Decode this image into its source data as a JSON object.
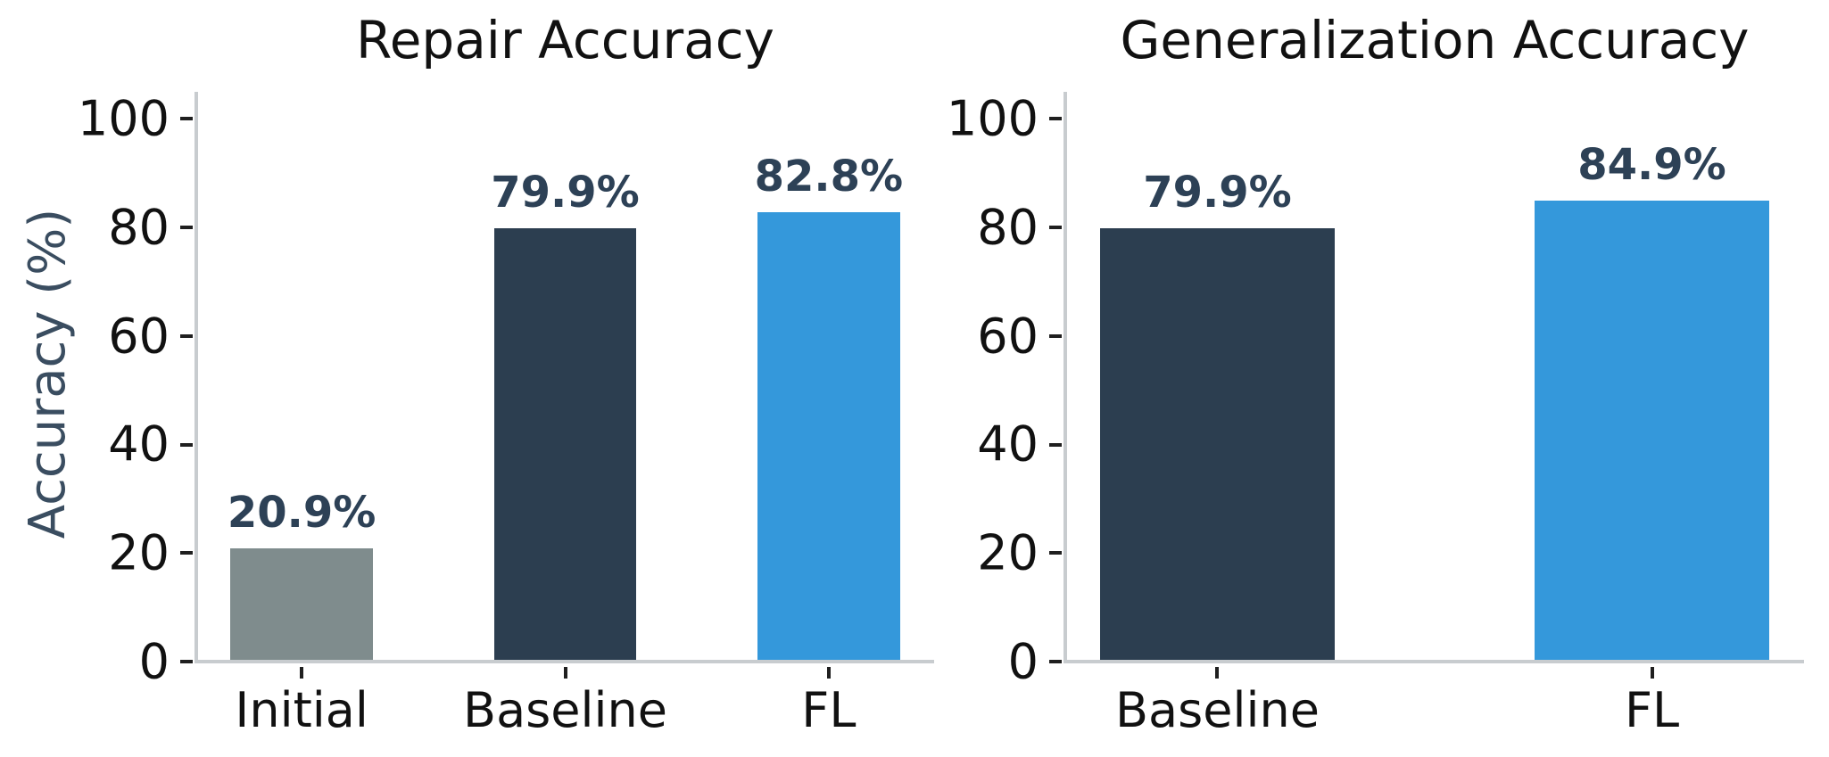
{
  "figure": {
    "background": "#ffffff",
    "ylabel": "Accuracy (%)",
    "colors": {
      "initial_bar": "#7f8c8d",
      "baseline_bar": "#2c3e50",
      "fl_bar": "#3498db",
      "value_label": "#2d4156",
      "axis_label": "#3a4d60",
      "tick_text": "#111111",
      "tick_mark": "#1f1f1f",
      "spine": "#c8cccf",
      "title": "#111111"
    }
  },
  "chart_data": [
    {
      "type": "bar",
      "title": "Repair Accuracy",
      "categories": [
        "Initial",
        "Baseline",
        "FL"
      ],
      "values": [
        20.9,
        79.9,
        82.8
      ],
      "value_labels": [
        "20.9%",
        "79.9%",
        "82.8%"
      ],
      "bar_colors": [
        "#7f8c8d",
        "#2c3e50",
        "#3498db"
      ],
      "ylabel": "Accuracy (%)",
      "ylim": [
        0,
        105
      ],
      "yticks": [
        0,
        20,
        40,
        60,
        80,
        100
      ],
      "xlim": [
        -0.4,
        2.4
      ],
      "bar_width": 0.54,
      "grid": false,
      "legend": null
    },
    {
      "type": "bar",
      "title": "Generalization Accuracy",
      "categories": [
        "Baseline",
        "FL"
      ],
      "values": [
        79.9,
        84.9
      ],
      "value_labels": [
        "79.9%",
        "84.9%"
      ],
      "bar_colors": [
        "#2c3e50",
        "#3498db"
      ],
      "ylabel": "Accuracy (%)",
      "ylim": [
        0,
        105
      ],
      "yticks": [
        0,
        20,
        40,
        60,
        80,
        100
      ],
      "xlim": [
        -0.35,
        1.35
      ],
      "bar_width": 0.54,
      "grid": false,
      "legend": null
    }
  ]
}
